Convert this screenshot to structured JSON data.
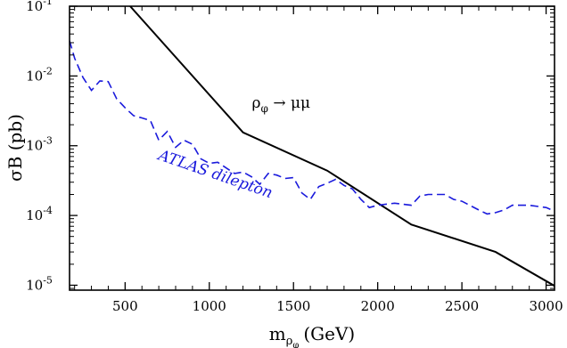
{
  "chart_data": {
    "type": "line",
    "title": "",
    "xlabel": "m",
    "xlabel_sub": "ρ",
    "xlabel_subsub": "φ",
    "xlabel_unit": "(GeV)",
    "ylabel": "σB (pb)",
    "xlim": [
      170,
      3050
    ],
    "ylim": [
      8.5e-06,
      0.1
    ],
    "yscale": "log",
    "grid": false,
    "x_ticks": [
      500,
      1000,
      1500,
      2000,
      2500,
      3000
    ],
    "x_tick_labels": [
      "500",
      "1000",
      "1500",
      "2000",
      "2500",
      "3000"
    ],
    "y_ticks": [
      1e-05,
      0.0001,
      0.001,
      0.01,
      0.1
    ],
    "y_tick_labels": [
      {
        "base": "10",
        "exp": "-5"
      },
      {
        "base": "10",
        "exp": "-4"
      },
      {
        "base": "10",
        "exp": "-3"
      },
      {
        "base": "10",
        "exp": "-2"
      },
      {
        "base": "10",
        "exp": "-1"
      }
    ],
    "series": [
      {
        "name": "ρφ → μμ",
        "color": "#000000",
        "style": "solid",
        "x": [
          530,
          1200,
          1700,
          2200,
          2700,
          3050
        ],
        "y": [
          0.1,
          0.00155,
          0.00044,
          7.4e-05,
          3e-05,
          9.8e-06
        ]
      },
      {
        "name": "ATLAS dilepton",
        "color": "#1a1adc",
        "style": "dashed",
        "x": [
          170,
          200,
          250,
          300,
          350,
          400,
          450,
          500,
          550,
          600,
          650,
          700,
          750,
          800,
          850,
          900,
          950,
          1000,
          1050,
          1100,
          1150,
          1200,
          1250,
          1300,
          1350,
          1400,
          1450,
          1500,
          1550,
          1600,
          1650,
          1700,
          1750,
          1800,
          1850,
          1900,
          1950,
          2000,
          2100,
          2200,
          2250,
          2300,
          2400,
          2450,
          2500,
          2600,
          2650,
          2700,
          2750,
          2800,
          2900,
          3000,
          3050
        ],
        "y": [
          0.032,
          0.018,
          0.0095,
          0.0062,
          0.0085,
          0.0083,
          0.0047,
          0.0035,
          0.0027,
          0.0025,
          0.0023,
          0.0012,
          0.0016,
          0.00095,
          0.0012,
          0.00105,
          0.00065,
          0.00056,
          0.00058,
          0.00048,
          0.0004,
          0.00042,
          0.00036,
          0.00028,
          0.0004,
          0.00038,
          0.00034,
          0.00035,
          0.00021,
          0.00017,
          0.00026,
          0.00029,
          0.00033,
          0.00027,
          0.00024,
          0.00017,
          0.00013,
          0.00014,
          0.00015,
          0.00014,
          0.00019,
          0.0002,
          0.0002,
          0.00017,
          0.00016,
          0.00012,
          0.000105,
          0.00011,
          0.00012,
          0.00014,
          0.00014,
          0.00013,
          0.000115
        ]
      }
    ],
    "annotations": [
      {
        "id": "rho-mumu",
        "base": "ρ",
        "sub": "φ",
        "rest": " → μμ",
        "x": 1200,
        "y": 0.0035,
        "color": "#000000"
      },
      {
        "id": "atlas",
        "text": "ATLAS dilepton",
        "x": 1010,
        "y": 0.00064,
        "rotate_deg": 19,
        "color": "#1a1adc"
      }
    ]
  }
}
